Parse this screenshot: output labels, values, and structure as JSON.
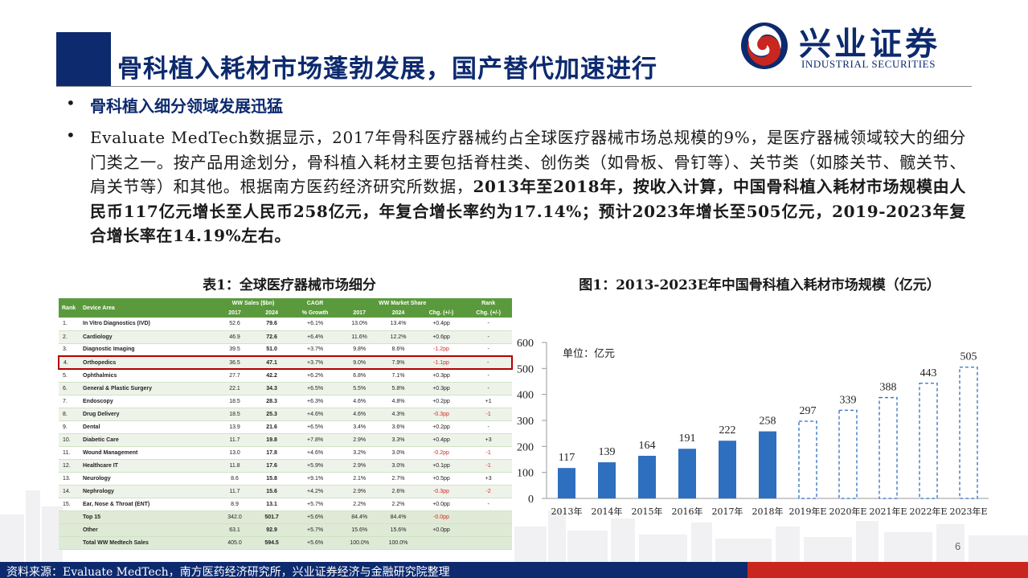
{
  "header": {
    "title": "骨科植入耗材市场蓬勃发展，国产替代加速进行",
    "logo_name": "兴业证券",
    "logo_en": "INDUSTRIAL SECURITIES"
  },
  "bullets": {
    "bullet1": "骨科植入细分领域发展迅猛",
    "bullet2_plain": "Evaluate MedTech数据显示，2017年骨科医疗器械约占全球医疗器械市场总规模的9%，是医疗器械领域较大的细分门类之一。按产品用途划分，骨科植入耗材主要包括脊柱类、创伤类（如骨板、骨钉等）、关节类（如膝关节、髋关节、肩关节等）和其他。根据南方医药经济研究所数据，",
    "bullet2_bold": "2013年至2018年，按收入计算，中国骨科植入耗材市场规模由人民币117亿元增长至人民币258亿元，年复合增长率约为17.14%；预计2023年增长至505亿元，2019-2023年复合增长率在14.19%左右。"
  },
  "table": {
    "title": "表1：全球医疗器械市场细分",
    "group_headers": {
      "sales": "WW Sales ($bn)",
      "cagr": "CAGR",
      "share": "WW Market Share",
      "rank": "Rank"
    },
    "columns": [
      "Rank",
      "Device Area",
      "2017",
      "2024",
      "% Growth",
      "2017",
      "2024",
      "Chg. (+/-)",
      "Chg. (+/-)"
    ],
    "rows": [
      {
        "rank": "1.",
        "area": "In Vitro Diagnostics (IVD)",
        "s17": "52.6",
        "s24": "79.6",
        "cagr": "+6.1%",
        "m17": "13.0%",
        "m24": "13.4%",
        "chg": "+0.4pp",
        "rchg": "-"
      },
      {
        "rank": "2.",
        "area": "Cardiology",
        "s17": "46.9",
        "s24": "72.6",
        "cagr": "+6.4%",
        "m17": "11.6%",
        "m24": "12.2%",
        "chg": "+0.6pp",
        "rchg": "-"
      },
      {
        "rank": "3.",
        "area": "Diagnostic Imaging",
        "s17": "39.5",
        "s24": "51.0",
        "cagr": "+3.7%",
        "m17": "9.8%",
        "m24": "8.6%",
        "chg": "-1.2pp",
        "rchg": "-"
      },
      {
        "rank": "4.",
        "area": "Orthopedics",
        "s17": "36.5",
        "s24": "47.1",
        "cagr": "+3.7%",
        "m17": "9.0%",
        "m24": "7.9%",
        "chg": "-1.1pp",
        "rchg": "-"
      },
      {
        "rank": "5.",
        "area": "Ophthalmics",
        "s17": "27.7",
        "s24": "42.2",
        "cagr": "+6.2%",
        "m17": "6.8%",
        "m24": "7.1%",
        "chg": "+0.3pp",
        "rchg": "-"
      },
      {
        "rank": "6.",
        "area": "General & Plastic Surgery",
        "s17": "22.1",
        "s24": "34.3",
        "cagr": "+6.5%",
        "m17": "5.5%",
        "m24": "5.8%",
        "chg": "+0.3pp",
        "rchg": "-"
      },
      {
        "rank": "7.",
        "area": "Endoscopy",
        "s17": "18.5",
        "s24": "28.3",
        "cagr": "+6.3%",
        "m17": "4.6%",
        "m24": "4.8%",
        "chg": "+0.2pp",
        "rchg": "+1"
      },
      {
        "rank": "8.",
        "area": "Drug Delivery",
        "s17": "18.5",
        "s24": "25.3",
        "cagr": "+4.6%",
        "m17": "4.6%",
        "m24": "4.3%",
        "chg": "-0.3pp",
        "rchg": "-1"
      },
      {
        "rank": "9.",
        "area": "Dental",
        "s17": "13.9",
        "s24": "21.6",
        "cagr": "+6.5%",
        "m17": "3.4%",
        "m24": "3.6%",
        "chg": "+0.2pp",
        "rchg": "-"
      },
      {
        "rank": "10.",
        "area": "Diabetic Care",
        "s17": "11.7",
        "s24": "19.8",
        "cagr": "+7.8%",
        "m17": "2.9%",
        "m24": "3.3%",
        "chg": "+0.4pp",
        "rchg": "+3"
      },
      {
        "rank": "11.",
        "area": "Wound Management",
        "s17": "13.0",
        "s24": "17.8",
        "cagr": "+4.6%",
        "m17": "3.2%",
        "m24": "3.0%",
        "chg": "-0.2pp",
        "rchg": "-1"
      },
      {
        "rank": "12.",
        "area": "Healthcare IT",
        "s17": "11.8",
        "s24": "17.6",
        "cagr": "+5.9%",
        "m17": "2.9%",
        "m24": "3.0%",
        "chg": "+0.1pp",
        "rchg": "-1"
      },
      {
        "rank": "13.",
        "area": "Neurology",
        "s17": "8.6",
        "s24": "15.8",
        "cagr": "+9.1%",
        "m17": "2.1%",
        "m24": "2.7%",
        "chg": "+0.5pp",
        "rchg": "+3"
      },
      {
        "rank": "14.",
        "area": "Nephrology",
        "s17": "11.7",
        "s24": "15.6",
        "cagr": "+4.2%",
        "m17": "2.9%",
        "m24": "2.6%",
        "chg": "-0.3pp",
        "rchg": "-2"
      },
      {
        "rank": "15.",
        "area": "Ear, Nose & Throat (ENT)",
        "s17": "8.9",
        "s24": "13.1",
        "cagr": "+5.7%",
        "m17": "2.2%",
        "m24": "2.2%",
        "chg": "+0.0pp",
        "rchg": "-"
      },
      {
        "rank": "",
        "area": "Top 15",
        "s17": "342.0",
        "s24": "501.7",
        "cagr": "+5.6%",
        "m17": "84.4%",
        "m24": "84.4%",
        "chg": "-0.0pp",
        "rchg": ""
      },
      {
        "rank": "",
        "area": "Other",
        "s17": "63.1",
        "s24": "92.9",
        "cagr": "+5.7%",
        "m17": "15.6%",
        "m24": "15.6%",
        "chg": "+0.0pp",
        "rchg": ""
      },
      {
        "rank": "",
        "area": "Total WW Medtech Sales",
        "s17": "405.0",
        "s24": "594.5",
        "cagr": "+5.6%",
        "m17": "100.0%",
        "m24": "100.0%",
        "chg": "",
        "rchg": ""
      }
    ]
  },
  "figure": {
    "title": "图1：2013-2023E年中国骨科植入耗材市场规模（亿元）"
  },
  "chart_data": {
    "type": "bar",
    "title": "图1：2013-2023E年中国骨科植入耗材市场规模（亿元）",
    "unit_label": "单位：亿元",
    "categories": [
      "2013年",
      "2014年",
      "2015年",
      "2016年",
      "2017年",
      "2018年",
      "2019年E",
      "2020年E",
      "2021年E",
      "2022年E",
      "2023年E"
    ],
    "values": [
      117,
      139,
      164,
      191,
      222,
      258,
      297,
      339,
      388,
      443,
      505
    ],
    "estimated": [
      false,
      false,
      false,
      false,
      false,
      false,
      true,
      true,
      true,
      true,
      true
    ],
    "ylim": [
      0,
      600
    ],
    "yticks": [
      0,
      100,
      200,
      300,
      400,
      500,
      600
    ],
    "bar_color": "#2e6fc0",
    "grid": false,
    "legend": "none"
  },
  "footer": {
    "page_number": "6",
    "source": "资料来源：Evaluate MedTech，南方医药经济研究所，兴业证券经济与金融研究院整理"
  }
}
